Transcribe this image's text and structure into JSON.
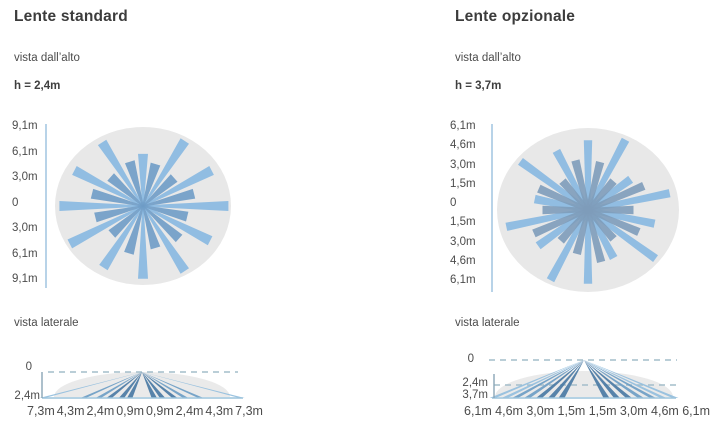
{
  "colors": {
    "beam_light": "#8cbae2",
    "beam_dark_standard": "#6f9cc6",
    "beam_dark_optional": "#7e9cba",
    "side_dark": "#4a7aa4",
    "side_mid": "#6d9dc4",
    "side_light": "#92bedd",
    "ellipse_fill": "#e8e8e8",
    "axis_line": "#a6c8e2",
    "dash_line": "#a3bdca",
    "baseline": "#9cc3dc",
    "vline": "#8aa6b6",
    "title_text": "#3c3c3c",
    "label_text": "#4c4c4c"
  },
  "panels": [
    {
      "title": "Lente standard",
      "top_view_label": "vista dall’alto",
      "mount_height_label": "h = 2,4m",
      "top_view": {
        "axis_labels": [
          "9,1m",
          "6,1m",
          "3,0m",
          "0",
          "3,0m",
          "6,1m",
          "9,1m"
        ],
        "beam_count": 24,
        "light_lengths": [
          0.66,
          0.95,
          0.9,
          0.97,
          0.88,
          0.95,
          0.92,
          0.9,
          0.96,
          0.95,
          0.9,
          0.93
        ],
        "dark_lengths": [
          0.55,
          0.5,
          0.6,
          0.52,
          0.58,
          0.55,
          0.62,
          0.5,
          0.56,
          0.6,
          0.52,
          0.58
        ]
      },
      "side_view_label": "vista laterale",
      "side_view": {
        "axis_labels": [
          "0",
          "2,4m"
        ],
        "beam_distances_m": [
          0.9,
          1.5,
          2.4,
          3.2,
          4.3,
          7.3
        ],
        "beam_tones": [
          "dark",
          "dark",
          "dark",
          "mid",
          "mid",
          "light"
        ],
        "distance_labels": [
          "7,3m",
          "4,3m",
          "2,4m",
          "0,9m",
          "0,9m",
          "2,4m",
          "4,3m",
          "7,3m"
        ]
      }
    },
    {
      "title": "Lente opzionale",
      "top_view_label": "vista dall’alto",
      "mount_height_label": "h = 3,7m",
      "top_view": {
        "axis_labels": [
          "6,1m",
          "4,6m",
          "3,0m",
          "1,5m",
          "0",
          "1,5m",
          "3,0m",
          "4,6m",
          "6,1m"
        ],
        "beam_count": 28,
        "light_lengths": [
          0.85,
          0.95,
          0.6,
          0.92,
          0.75,
          0.95,
          0.65,
          0.9,
          0.95,
          0.7,
          0.92,
          0.6,
          0.95,
          0.8
        ],
        "dark_lengths": [
          0.6,
          0.45,
          0.68,
          0.5,
          0.62,
          0.45,
          0.65,
          0.55,
          0.48,
          0.66,
          0.5,
          0.6,
          0.45,
          0.62
        ]
      },
      "side_view_label": "vista laterale",
      "side_view": {
        "axis_labels": [
          "0",
          "2,4m",
          "3,7m"
        ],
        "beam_distances_m": [
          1.5,
          2.2,
          3.0,
          3.8,
          4.6,
          5.3,
          6.1
        ],
        "beam_tones": [
          "dark",
          "dark",
          "dark",
          "mid",
          "mid",
          "light",
          "light"
        ],
        "distance_labels": [
          "6,1m",
          "4,6m",
          "3,0m",
          "1,5m",
          "1,5m",
          "3,0m",
          "4,6m",
          "6,1m"
        ]
      }
    }
  ]
}
